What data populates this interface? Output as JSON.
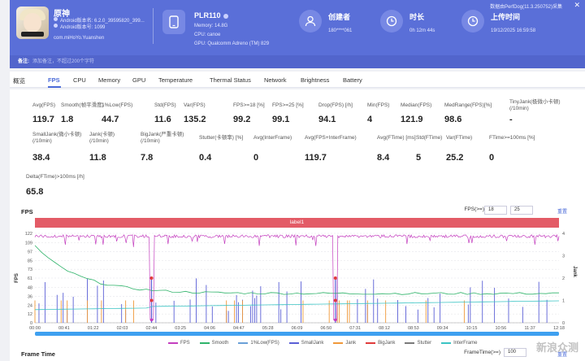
{
  "header": {
    "top_link": "数据由PerfDog(11.3.250752)采集",
    "close_glyph": "✕",
    "app": {
      "name": "原神",
      "android_name": "Android版本名: 6.2.0_39595820_399...",
      "android_code": "Android版本号: 1099",
      "package": "com.miHoYo.Yuanshen"
    },
    "device": {
      "name": "PLR110",
      "memory": "Memory: 14.8G",
      "cpu": "CPU: canoe",
      "gpu": "GPU: Qualcomm Adreno (TM) 829"
    },
    "creator": {
      "title": "创建者",
      "value": "180****061"
    },
    "duration": {
      "title": "时长",
      "value": "0h 12m 44s"
    },
    "upload": {
      "title": "上传时间",
      "value": "19/12/2025 16:59:58"
    }
  },
  "note": {
    "label": "备注:",
    "placeholder": "添加备注，不超过200个字符"
  },
  "tabs": [
    "概览",
    "FPS",
    "CPU",
    "Memory",
    "GPU",
    "Temperature",
    "Thermal Status",
    "Network",
    "Brightness",
    "Battery"
  ],
  "active_tab": "FPS",
  "stats_row1": [
    {
      "label": "Avg(FPS)",
      "value": "119.7"
    },
    {
      "label": "Smooth(帧平滑度)",
      "value": "1.8"
    },
    {
      "label": "1%Low(FPS)",
      "value": "44.7"
    },
    {
      "label": "Std(FPS)",
      "value": "11.6"
    },
    {
      "label": "Var(FPS)",
      "value": "135.2"
    },
    {
      "label": "FPS>=18 [%]",
      "value": "99.2"
    },
    {
      "label": "FPS>=25 [%]",
      "value": "99.1"
    },
    {
      "label": "Drop(FPS) [/h]",
      "value": "94.1"
    },
    {
      "label": "Min(FPS)",
      "value": "4"
    },
    {
      "label": "Median(FPS)",
      "value": "121.9"
    },
    {
      "label": "MedRange(FPS)[%]",
      "value": "98.6"
    },
    {
      "label": "TinyJank(极微小卡顿)\n(/10min)",
      "value": "-"
    }
  ],
  "stats_row2": [
    {
      "label": "SmallJank(微小卡顿)\n(/10min)",
      "value": "38.4"
    },
    {
      "label": "Jank(卡顿)\n(/10min)",
      "value": "11.8"
    },
    {
      "label": "BigJank(严重卡顿)\n(/10min)",
      "value": "7.8"
    },
    {
      "label": "Stutter(卡顿率) [%]",
      "value": "0.4"
    },
    {
      "label": "Avg(InterFrame)",
      "value": "0"
    },
    {
      "label": "Avg(FPS+InterFrame)",
      "value": "119.7"
    },
    {
      "label": "Avg(FTime) [ms]",
      "value": "8.4"
    },
    {
      "label": "Std(FTime)",
      "value": "5"
    },
    {
      "label": "Var(FTime)",
      "value": "25.2"
    },
    {
      "label": "FTime>=100ms [%]",
      "value": "0"
    }
  ],
  "stats_row3": [
    {
      "label": "Delta(FTime)>100ms [/h]",
      "value": "65.8"
    }
  ],
  "fps_section": {
    "title": "FPS",
    "threshold_label": "FPS(>=)",
    "threshold_1": "18",
    "threshold_2": "25",
    "reset": "重置",
    "label_bar": "label1"
  },
  "chart_data": {
    "type": "line",
    "title": "FPS",
    "ylabel": "FPS",
    "y2label": "Jank",
    "ylim": [
      0,
      122
    ],
    "y_ticks": [
      0,
      12,
      24,
      36,
      48,
      61,
      73,
      85,
      97,
      109,
      122
    ],
    "y2lim": [
      0,
      4
    ],
    "y2_ticks": [
      0,
      1,
      2,
      3,
      4
    ],
    "x_ticks": [
      "00:00",
      "00:41",
      "01:22",
      "02:03",
      "02:44",
      "03:25",
      "04:06",
      "04:47",
      "05:28",
      "06:09",
      "06:50",
      "07:31",
      "08:12",
      "08:53",
      "09:34",
      "10:15",
      "10:56",
      "11:37",
      "12:18"
    ],
    "legend": [
      "FPS",
      "Smooth",
      "1%Low(FPS)",
      "SmallJank",
      "Jank",
      "BigJank",
      "Stutter",
      "InterFrame"
    ],
    "colors": {
      "FPS": "#c43fbf",
      "Smooth": "#2fb36a",
      "1%Low(FPS)": "#6aa0d8",
      "SmallJank": "#5a5fd6",
      "Jank": "#f0993a",
      "BigJank": "#e03b3b",
      "Stutter": "#7a7a7a",
      "InterFrame": "#3bc4c4"
    },
    "fps_base": 120,
    "fps_dips_at": [
      "02:50",
      "07:18"
    ],
    "fps_dip_min": 4,
    "smooth_start": 105,
    "smooth_end": 40
  },
  "frametime_section": {
    "title": "Frame Time",
    "threshold_label": "FrameTime(>=)",
    "threshold": "100",
    "reset": "重置"
  },
  "watermark": "新浪众测"
}
